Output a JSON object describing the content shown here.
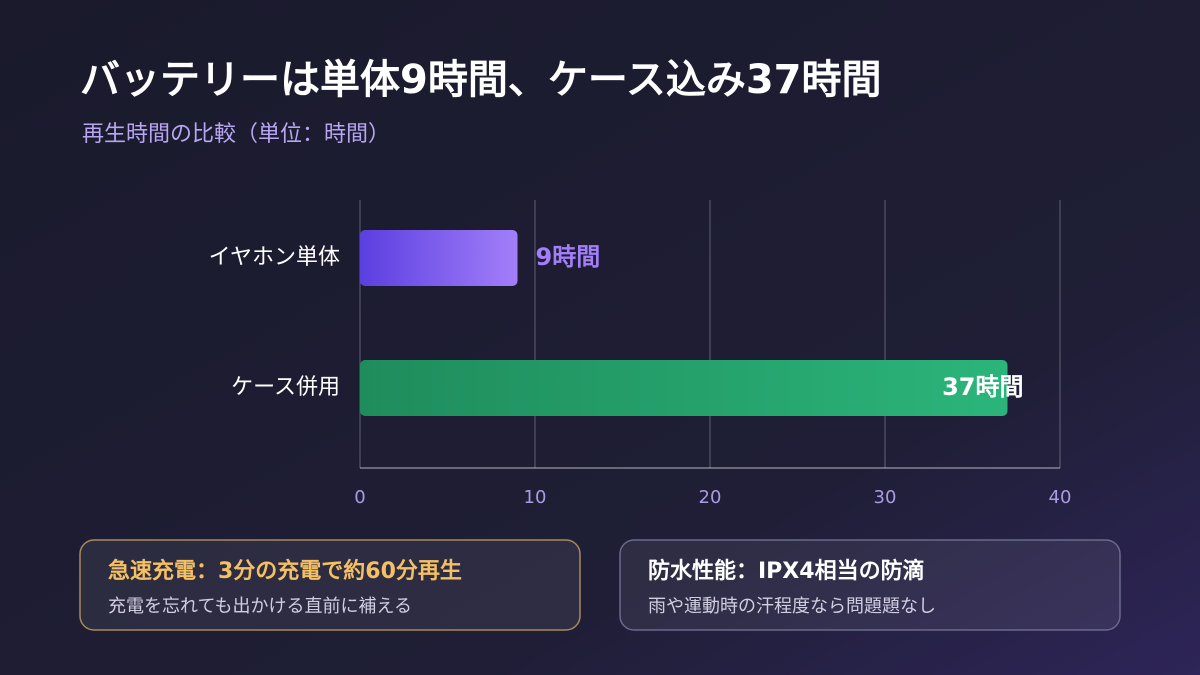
{
  "chart_data": {
    "type": "bar",
    "orientation": "horizontal",
    "title": "バッテリーは単体9時間、ケース込み37時間",
    "subtitle": "再生時間の比較（単位：時間）",
    "categories": [
      "イヤホン単体",
      "ケース併用"
    ],
    "values": [
      9,
      37
    ],
    "value_labels": [
      "9時間",
      "37時間"
    ],
    "colors": [
      [
        "#5b3fe0",
        "#a27ff9"
      ],
      [
        "#1f8c5c",
        "#2bb57b"
      ]
    ],
    "xlim": [
      0,
      40
    ],
    "xticks": [
      0,
      10,
      20,
      30,
      40
    ],
    "grid": true
  },
  "notes": [
    {
      "title": "急速充電：3分の充電で約60分再生",
      "text": "充電を忘れても出かける直前に補える"
    },
    {
      "title": "防水性能：IPX4相当の防滴",
      "text": "雨や運動時の汗程度なら問題題なし"
    }
  ]
}
